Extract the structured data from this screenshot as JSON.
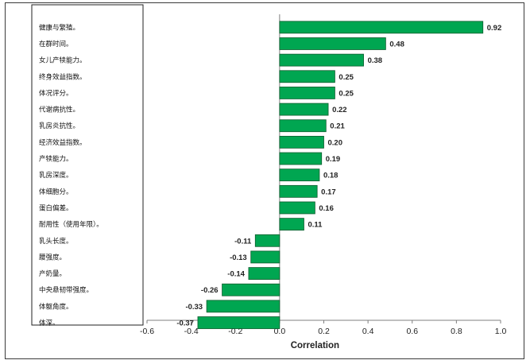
{
  "colors": {
    "bar": "#00a651",
    "bar_stroke": "#0d5c2e",
    "axis": "#7f7f7f",
    "frame": "#3a3a3a"
  },
  "chart_data": {
    "type": "bar",
    "orientation": "horizontal",
    "categories": [
      "健康与繁殖。",
      "在群时间。",
      "女儿产犊能力。",
      "终身效益指数。",
      "体况评分。",
      "代谢病抗性。",
      "乳房炎抗性。",
      "经济效益指数。",
      "产犊能力。",
      "乳房深度。",
      "体细胞分。",
      "蛋白偏差。",
      "耐用性（使用年限）。",
      "乳头长度。",
      "腰强度。",
      "产奶量。",
      "中央悬韧带强度。",
      "体躯角度。",
      "体深。"
    ],
    "values": [
      0.92,
      0.48,
      0.38,
      0.25,
      0.25,
      0.22,
      0.21,
      0.2,
      0.19,
      0.18,
      0.17,
      0.16,
      0.11,
      -0.11,
      -0.13,
      -0.14,
      -0.26,
      -0.33,
      -0.37
    ],
    "value_labels": [
      "0.92",
      "0.48",
      "0.38",
      "0.25",
      "0.25",
      "0.22",
      "0.21",
      "0.20",
      "0.19",
      "0.18",
      "0.17",
      "0.16",
      "0.11",
      "-0.11",
      "-0.13",
      "-0.14",
      "-0.26",
      "-0.33",
      "-0.37"
    ],
    "xlim": [
      -0.6,
      1.0
    ],
    "xticks": [
      "-0.6",
      "-0.4",
      "-0.2",
      "0.0",
      "0.2",
      "0.4",
      "0.6",
      "0.8",
      "1.0"
    ],
    "xlabel": "Correlation",
    "ylabel": "",
    "title": "",
    "grid": false,
    "legend": "none"
  }
}
